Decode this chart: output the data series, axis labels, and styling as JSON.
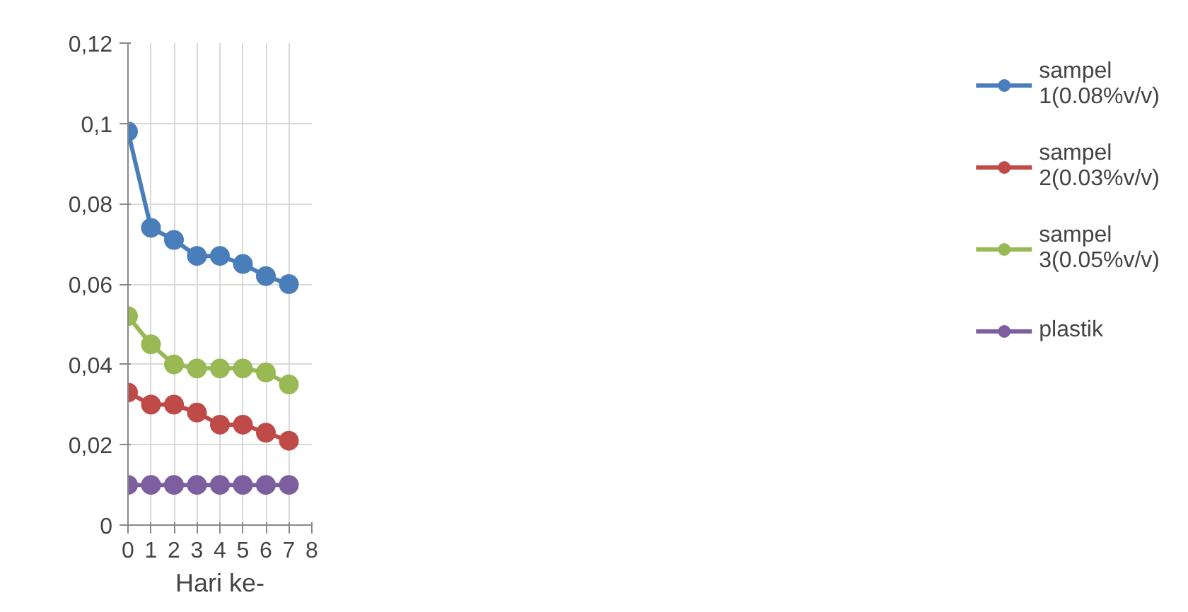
{
  "chart_data": {
    "type": "line",
    "xlabel": "Hari ke-",
    "x": [
      0,
      1,
      2,
      3,
      4,
      5,
      6,
      7
    ],
    "xlim": [
      0,
      8
    ],
    "xticks": [
      0,
      1,
      2,
      3,
      4,
      5,
      6,
      7,
      8
    ],
    "ylim": [
      0,
      0.12
    ],
    "yticks": [
      0,
      {
        "value": 0.02,
        "label": "0,02"
      },
      {
        "value": 0.04,
        "label": "0,04"
      },
      {
        "value": 0.06,
        "label": "0,06"
      },
      {
        "value": 0.08,
        "label": "0,08"
      },
      {
        "value": 0.1,
        "label": "0,1"
      },
      {
        "value": 0.12,
        "label": "0,12"
      }
    ],
    "grid": true,
    "legend": "right",
    "marker": "circle",
    "line_style": "solid",
    "series": [
      {
        "name": "sampel\n1(0.08%v/v)",
        "color": "#4a7ebb",
        "values": [
          0.098,
          0.074,
          0.071,
          0.067,
          0.067,
          0.065,
          0.062,
          0.06
        ]
      },
      {
        "name": "sampel\n2(0.03%v/v)",
        "color": "#be4b48",
        "values": [
          0.033,
          0.03,
          0.03,
          0.028,
          0.025,
          0.025,
          0.023,
          0.021
        ]
      },
      {
        "name": "sampel\n3(0.05%v/v)",
        "color": "#98b954",
        "values": [
          0.052,
          0.045,
          0.04,
          0.039,
          0.039,
          0.039,
          0.038,
          0.035
        ]
      },
      {
        "name": "plastik",
        "color": "#7d5fa0",
        "values": [
          0.01,
          0.01,
          0.01,
          0.01,
          0.01,
          0.01,
          0.01,
          0.01
        ]
      }
    ]
  }
}
